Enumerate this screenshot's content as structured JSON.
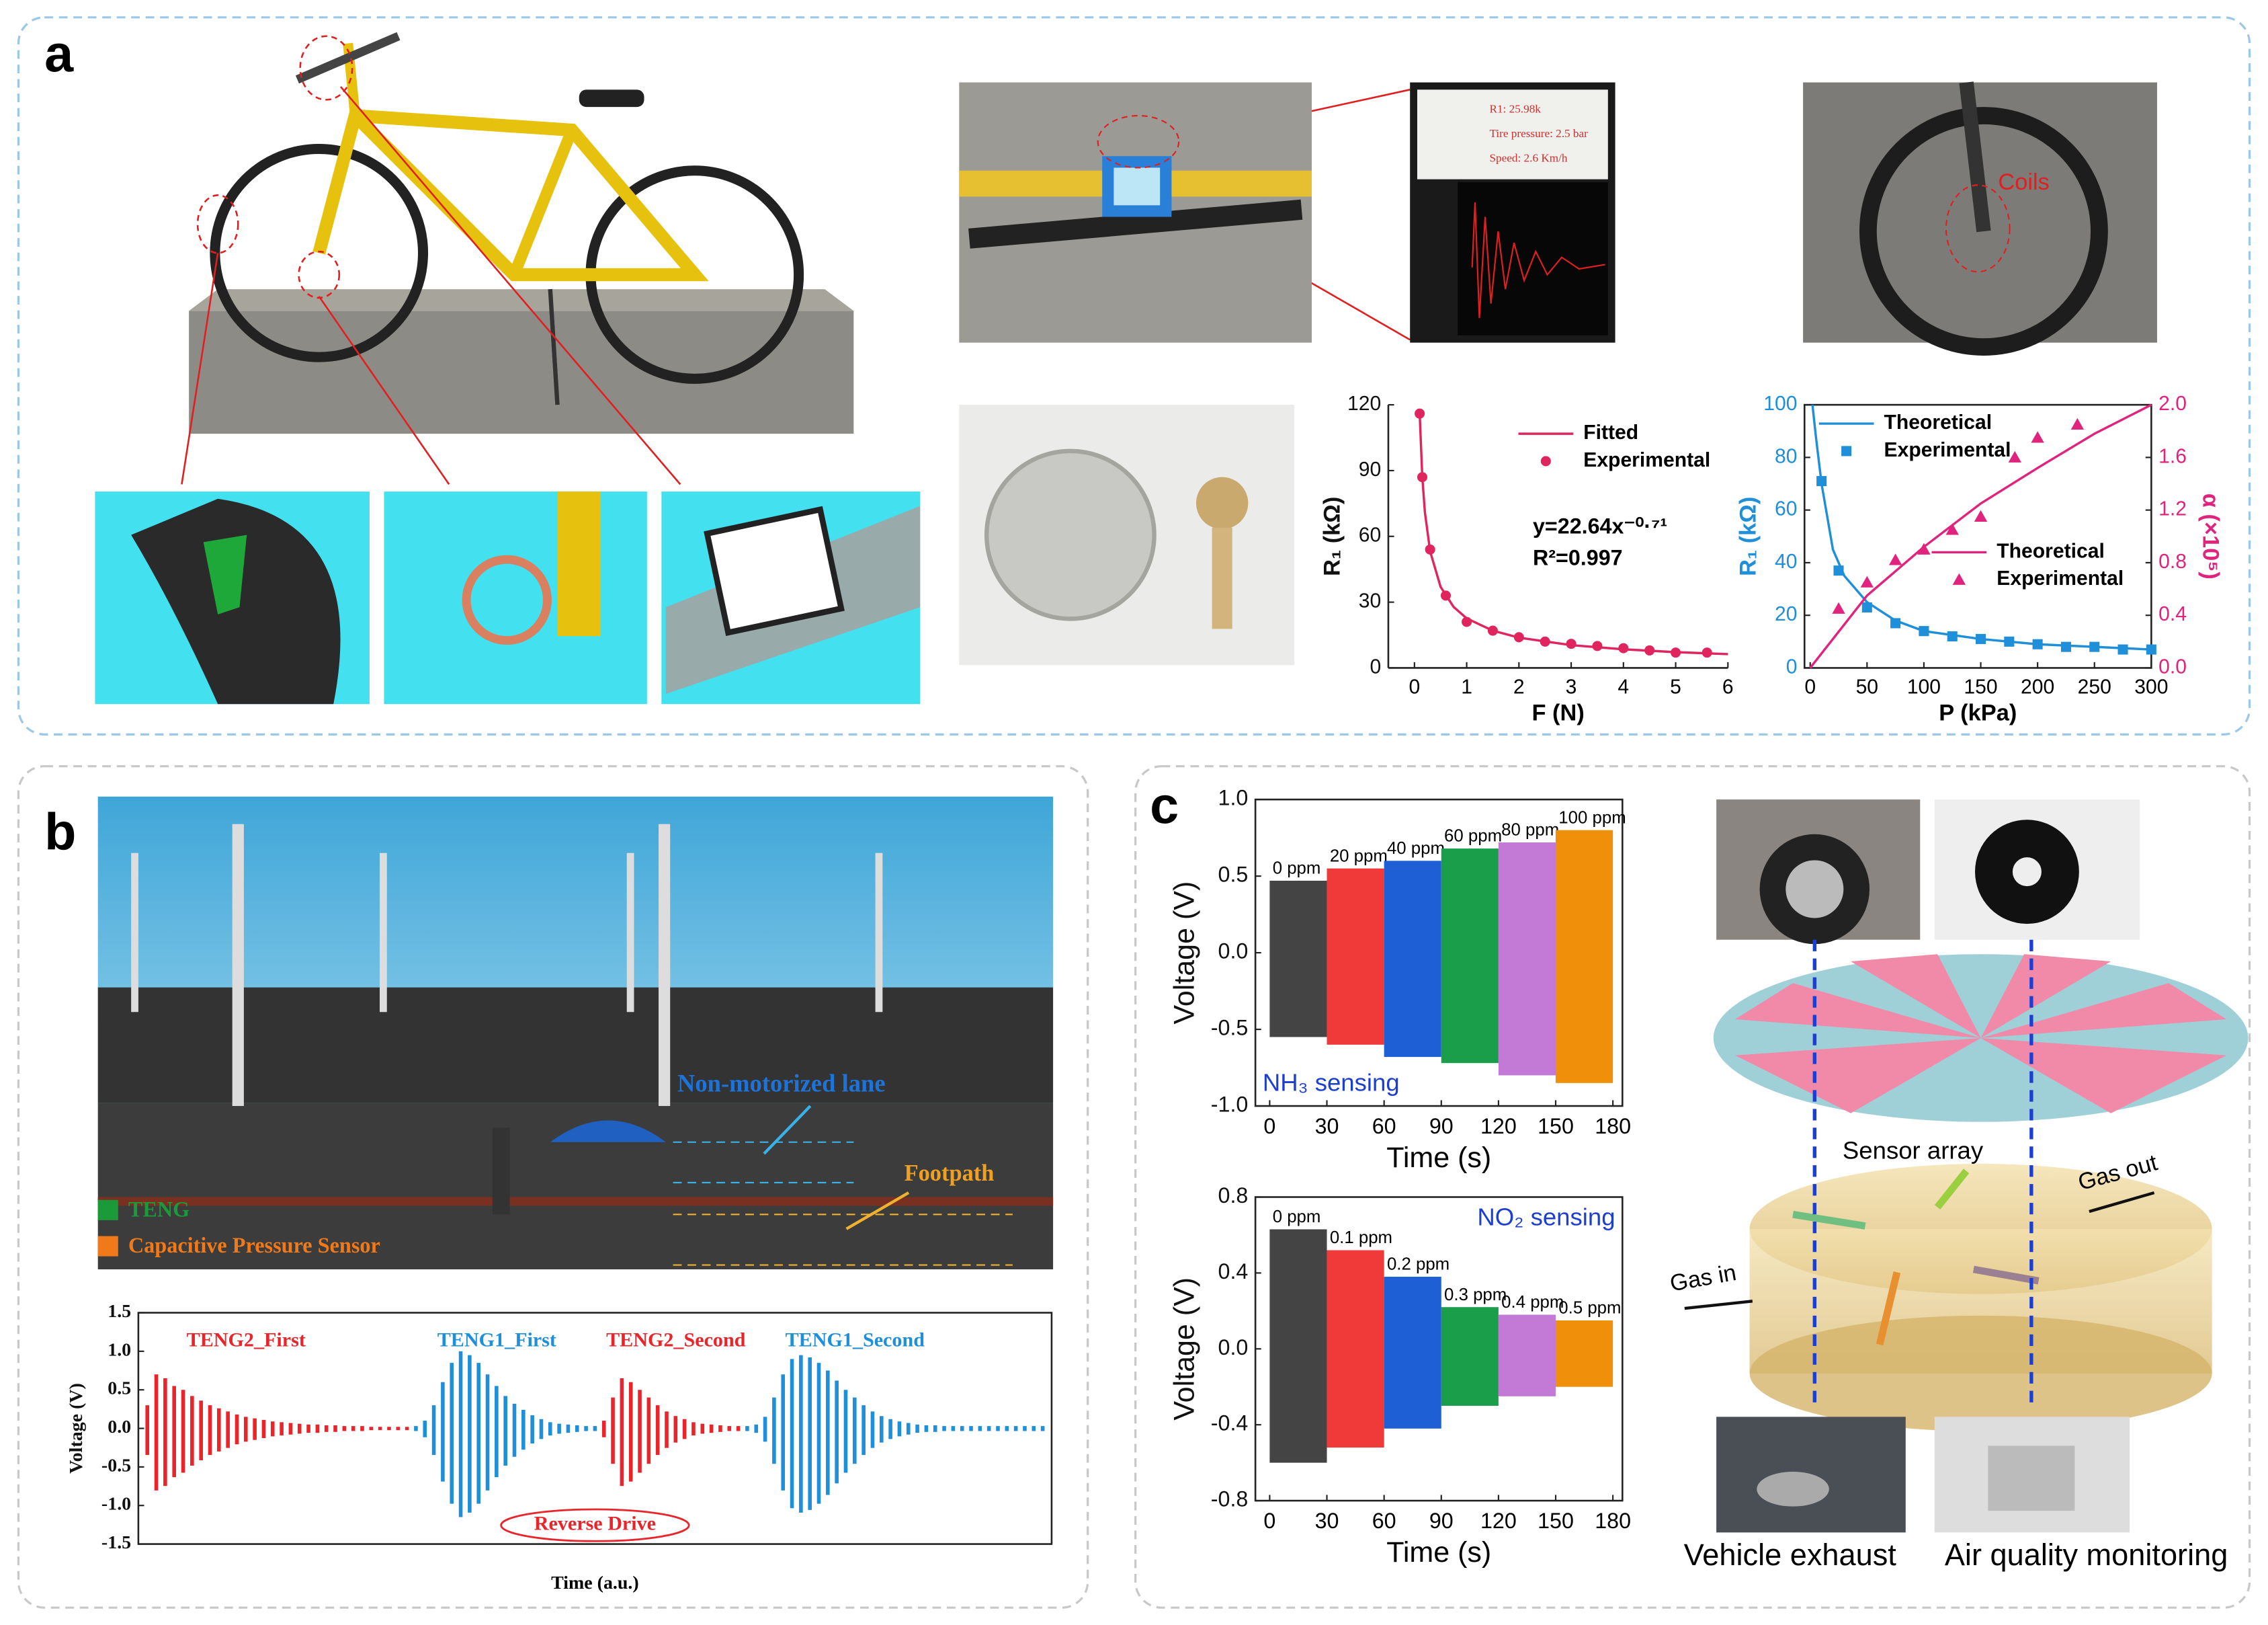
{
  "panels": [
    "a",
    "b",
    "c"
  ],
  "photo_labels": {
    "coils": "Coils",
    "lcd": [
      "R1: 25.98k",
      "Tire pressure: 2.5 bar",
      "Speed: 2.6 Km/h"
    ]
  },
  "scene_labels": {
    "lane": "Non-motorized lane",
    "footpath": "Footpath",
    "teng": "TENG",
    "sensor": "Capacitive Pressure Sensor"
  },
  "illustration_labels": {
    "array": "Sensor array",
    "gas_out": "Gas out",
    "gas_in": "Gas in",
    "exhaust": "Vehicle exhaust",
    "air": "Air quality monitoring"
  },
  "chart_data": [
    {
      "type": "line",
      "xlabel": "F (N)",
      "ylabel": "R₁ (kΩ)",
      "xlim": [
        -0.5,
        6
      ],
      "ylim": [
        0,
        120
      ],
      "xticks": [
        0,
        1,
        2,
        3,
        4,
        5,
        6
      ],
      "yticks": [
        0,
        30,
        60,
        90,
        120
      ],
      "legend": "upper right",
      "annotations": [
        "y=22.64x⁻⁰·⁷¹",
        "R²=0.997"
      ],
      "series": [
        {
          "name": "Fitted",
          "color": "#e0245e",
          "style": "line",
          "x": [
            0.1,
            0.15,
            0.2,
            0.3,
            0.5,
            0.75,
            1,
            1.5,
            2,
            3,
            4,
            5,
            6
          ],
          "values": [
            116.1,
            87.1,
            71.0,
            53.2,
            37.0,
            27.8,
            22.6,
            17.0,
            13.8,
            10.4,
            8.5,
            7.2,
            6.3
          ]
        },
        {
          "name": "Experimental",
          "color": "#e0245e",
          "style": "circle",
          "x": [
            0.1,
            0.15,
            0.3,
            0.6,
            1,
            1.5,
            2,
            2.5,
            3,
            3.5,
            4,
            4.5,
            5,
            5.6
          ],
          "values": [
            116,
            87,
            54,
            33,
            21,
            17,
            14,
            12,
            11,
            10,
            9,
            8,
            7,
            7
          ]
        }
      ]
    },
    {
      "type": "line",
      "xlabel": "P (kPa)",
      "ylabel": "R₁ (kΩ)",
      "y2label": "α (×10⁵)",
      "ylabel_color": "#1e8fd8",
      "y2label_color": "#e0247e",
      "xlim": [
        -5,
        300
      ],
      "ylim": [
        0,
        100
      ],
      "y2lim": [
        0,
        2
      ],
      "xticks": [
        0,
        50,
        100,
        150,
        200,
        250,
        300
      ],
      "yticks": [
        0,
        20,
        40,
        60,
        80,
        100
      ],
      "y2ticks": [
        {
          "value": 0,
          "label": "0.0"
        },
        0.4,
        0.8,
        1.2,
        1.6,
        {
          "value": 2,
          "label": "2.0"
        }
      ],
      "series": [
        {
          "name": "Theoretical",
          "color": "#1e8fd8",
          "style": "line",
          "x": [
            2,
            5,
            10,
            20,
            30,
            50,
            75,
            100,
            150,
            200,
            250,
            300
          ],
          "values": [
            100,
            88,
            70,
            45,
            35,
            25,
            18,
            14,
            11,
            9,
            8,
            7
          ]
        },
        {
          "name": "Experimental",
          "color": "#1e8fd8",
          "style": "square",
          "x": [
            10,
            25,
            50,
            75,
            100,
            125,
            150,
            175,
            200,
            225,
            250,
            275,
            300
          ],
          "values": [
            71,
            37,
            23,
            17,
            14,
            12,
            11,
            10,
            9,
            8,
            8,
            7,
            7
          ]
        },
        {
          "name": "Theoretical",
          "color": "#e0247e",
          "style": "line",
          "axis": "y2",
          "x": [
            0,
            50,
            100,
            150,
            200,
            250,
            300
          ],
          "values": [
            0,
            0.55,
            0.92,
            1.25,
            1.52,
            1.78,
            2.0
          ]
        },
        {
          "name": "Experimental",
          "color": "#e0247e",
          "style": "triangle",
          "axis": "y2",
          "x": [
            25,
            50,
            75,
            100,
            125,
            150,
            180,
            200,
            235
          ],
          "values": [
            0.45,
            0.65,
            0.82,
            0.9,
            1.05,
            1.15,
            1.6,
            1.75,
            1.85
          ]
        }
      ]
    },
    {
      "type": "envelope",
      "xlabel": "Time  (a.u.)",
      "ylabel": "Voltage (V)",
      "xlim": [
        -1,
        101
      ],
      "ylim": [
        -1.5,
        1.5
      ],
      "yticks": [
        -1.5,
        {
          "value": -1,
          "label": "-1.0"
        },
        -0.5,
        {
          "value": 0,
          "label": "0.0"
        },
        0.5,
        {
          "value": 1,
          "label": "1.0"
        },
        1.5
      ],
      "annotations": [
        "Reverse Drive"
      ],
      "series": [
        {
          "name": "TENG2_First",
          "color": "#e8252b",
          "x": [
            0,
            1,
            2,
            3,
            4,
            5,
            6,
            7,
            8,
            9,
            10,
            11,
            12,
            13,
            14,
            15,
            16,
            17,
            18,
            19,
            20,
            21,
            22,
            23,
            24,
            25,
            26,
            27,
            28,
            29
          ],
          "values": [
            0.3,
            0.7,
            0.65,
            0.55,
            0.5,
            0.42,
            0.36,
            0.3,
            0.26,
            0.22,
            0.18,
            0.15,
            0.13,
            0.11,
            0.09,
            0.08,
            0.07,
            0.06,
            0.05,
            0.05,
            0.04,
            0.04,
            0.03,
            0.03,
            0.03,
            0.02,
            0.02,
            0.02,
            0.02,
            0.02
          ]
        },
        {
          "name": "TENG1_First",
          "color": "#1e8fd8",
          "x": [
            30,
            31,
            32,
            33,
            34,
            35,
            36,
            37,
            38,
            39,
            40,
            41,
            42,
            43,
            44,
            45,
            46,
            47,
            48,
            49,
            50
          ],
          "values": [
            0.03,
            0.1,
            0.3,
            0.6,
            0.85,
            1.0,
            0.95,
            0.85,
            0.7,
            0.55,
            0.42,
            0.32,
            0.24,
            0.17,
            0.12,
            0.08,
            0.06,
            0.05,
            0.04,
            0.03,
            0.03
          ]
        },
        {
          "name": "TENG2_Second",
          "color": "#e8252b",
          "x": [
            51,
            52,
            53,
            54,
            55,
            56,
            57,
            58,
            59,
            60,
            61,
            62,
            63,
            64,
            65,
            66
          ],
          "values": [
            0.1,
            0.4,
            0.65,
            0.6,
            0.5,
            0.4,
            0.3,
            0.22,
            0.16,
            0.12,
            0.08,
            0.06,
            0.05,
            0.04,
            0.03,
            0.03
          ]
        },
        {
          "name": "TENG1_Second",
          "color": "#1e8fd8",
          "x": [
            67,
            68,
            69,
            70,
            71,
            72,
            73,
            74,
            75,
            76,
            77,
            78,
            79,
            80,
            81,
            82,
            83,
            84,
            85,
            86,
            87,
            88,
            89,
            90,
            91,
            92,
            93,
            94,
            95,
            96,
            97,
            98,
            99,
            100
          ],
          "values": [
            0.03,
            0.05,
            0.15,
            0.4,
            0.7,
            0.9,
            0.95,
            0.92,
            0.85,
            0.75,
            0.62,
            0.5,
            0.4,
            0.3,
            0.22,
            0.16,
            0.12,
            0.09,
            0.07,
            0.05,
            0.04,
            0.04,
            0.03,
            0.03,
            0.03,
            0.03,
            0.03,
            0.03,
            0.03,
            0.03,
            0.03,
            0.03,
            0.03,
            0.03
          ]
        }
      ]
    },
    {
      "type": "band",
      "xlabel": "Time (s)",
      "ylabel": "Voltage (V)",
      "xlim": [
        -7.5,
        185
      ],
      "ylim": [
        -1,
        1
      ],
      "xticks": [
        0,
        30,
        60,
        90,
        120,
        150,
        180
      ],
      "yticks": [
        {
          "value": -1,
          "label": "-1.0"
        },
        -0.5,
        {
          "value": 0,
          "label": "0.0"
        },
        0.5,
        {
          "value": 1,
          "label": "1.0"
        }
      ],
      "annotations": [
        "NH₃ sensing"
      ],
      "annotation_color": "#1d3fd0",
      "series": [
        {
          "name": "0 ppm",
          "color": "#444444",
          "x": [
            0,
            30
          ],
          "values": [
            0.47,
            -0.55
          ]
        },
        {
          "name": "20 ppm",
          "color": "#f03a3a",
          "x": [
            30,
            60
          ],
          "values": [
            0.55,
            -0.6
          ]
        },
        {
          "name": "40 ppm",
          "color": "#1f5fd6",
          "x": [
            60,
            90
          ],
          "values": [
            0.6,
            -0.68
          ]
        },
        {
          "name": "60 ppm",
          "color": "#1a9e4a",
          "x": [
            90,
            120
          ],
          "values": [
            0.68,
            -0.72
          ]
        },
        {
          "name": "80 ppm",
          "color": "#c27ad6",
          "x": [
            120,
            150
          ],
          "values": [
            0.72,
            -0.8
          ]
        },
        {
          "name": "100 ppm",
          "color": "#f0900a",
          "x": [
            150,
            180
          ],
          "values": [
            0.8,
            -0.85
          ]
        }
      ]
    },
    {
      "type": "band",
      "xlabel": "Time (s)",
      "ylabel": "Voltage (V)",
      "xlim": [
        -7.5,
        185
      ],
      "ylim": [
        -0.8,
        0.8
      ],
      "xticks": [
        0,
        30,
        60,
        90,
        120,
        150,
        180
      ],
      "yticks": [
        -0.8,
        -0.4,
        {
          "value": 0,
          "label": "0.0"
        },
        0.4,
        0.8
      ],
      "annotations": [
        "NO₂ sensing"
      ],
      "annotation_color": "#1d3fd0",
      "series": [
        {
          "name": "0 ppm",
          "color": "#444444",
          "x": [
            0,
            30
          ],
          "values": [
            0.63,
            -0.6
          ]
        },
        {
          "name": "0.1 ppm",
          "color": "#f03a3a",
          "x": [
            30,
            60
          ],
          "values": [
            0.52,
            -0.52
          ]
        },
        {
          "name": "0.2 ppm",
          "color": "#1f5fd6",
          "x": [
            60,
            90
          ],
          "values": [
            0.38,
            -0.42
          ]
        },
        {
          "name": "0.3 ppm",
          "color": "#1a9e4a",
          "x": [
            90,
            120
          ],
          "values": [
            0.22,
            -0.3
          ]
        },
        {
          "name": "0.4 ppm",
          "color": "#c27ad6",
          "x": [
            120,
            150
          ],
          "values": [
            0.18,
            -0.25
          ]
        },
        {
          "name": "0.5 ppm",
          "color": "#f0900a",
          "x": [
            150,
            180
          ],
          "values": [
            0.15,
            -0.2
          ]
        }
      ]
    }
  ]
}
